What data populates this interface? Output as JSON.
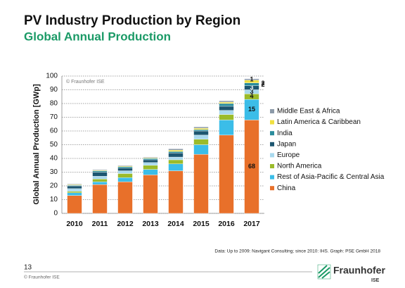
{
  "chart_data": {
    "type": "stacked_bar",
    "title": "PV Industry Production by Region",
    "subtitle": "Global Annual Production",
    "ylabel": "Global Annual Production [GWp]",
    "watermark": "© Fraunhofer ISE",
    "source": "Data: Up to 2009: Navigant Consulting; since 2010: IHS. Graph: PSE GmbH 2018",
    "categories": [
      "2010",
      "2011",
      "2012",
      "2013",
      "2014",
      "2015",
      "2016",
      "2017"
    ],
    "series": [
      {
        "name": "China",
        "color": "#e8702a",
        "values": [
          13,
          21,
          23,
          28,
          31,
          43,
          57,
          68
        ]
      },
      {
        "name": "Rest of Asia-Pacific & Central Asia",
        "color": "#3bbde8",
        "values": [
          2,
          2,
          3,
          4,
          5,
          7,
          11,
          15
        ]
      },
      {
        "name": "North America",
        "color": "#9bbb2a",
        "values": [
          1,
          2,
          3,
          3,
          3,
          4,
          4,
          4
        ]
      },
      {
        "name": "Europe",
        "color": "#a9d9ee",
        "values": [
          2,
          2,
          2,
          2,
          2,
          3,
          3,
          3
        ]
      },
      {
        "name": "Japan",
        "color": "#1d5670",
        "values": [
          2,
          3,
          2,
          2,
          3,
          3,
          3,
          3
        ]
      },
      {
        "name": "India",
        "color": "#2a8c9c",
        "values": [
          0.5,
          1,
          1,
          1,
          1,
          1,
          2,
          2
        ]
      },
      {
        "name": "Latin America & Caribbean",
        "color": "#f0e040",
        "values": [
          0.5,
          0.5,
          0.5,
          0.5,
          1,
          1,
          1,
          2
        ]
      },
      {
        "name": "Middle East & Africa",
        "color": "#8c9aa8",
        "values": [
          0.5,
          0.5,
          0.5,
          0.5,
          1,
          1,
          1,
          1
        ]
      }
    ],
    "data_labels": "last",
    "ylim": [
      0,
      100
    ],
    "yticks": [
      0,
      10,
      20,
      30,
      40,
      50,
      60,
      70,
      80,
      90,
      100
    ],
    "grid": true
  },
  "footer": {
    "page_number": "13",
    "copyright": "© Fraunhofer ISE",
    "logo": "Fraunhofer",
    "logo_sub": "ISE"
  }
}
